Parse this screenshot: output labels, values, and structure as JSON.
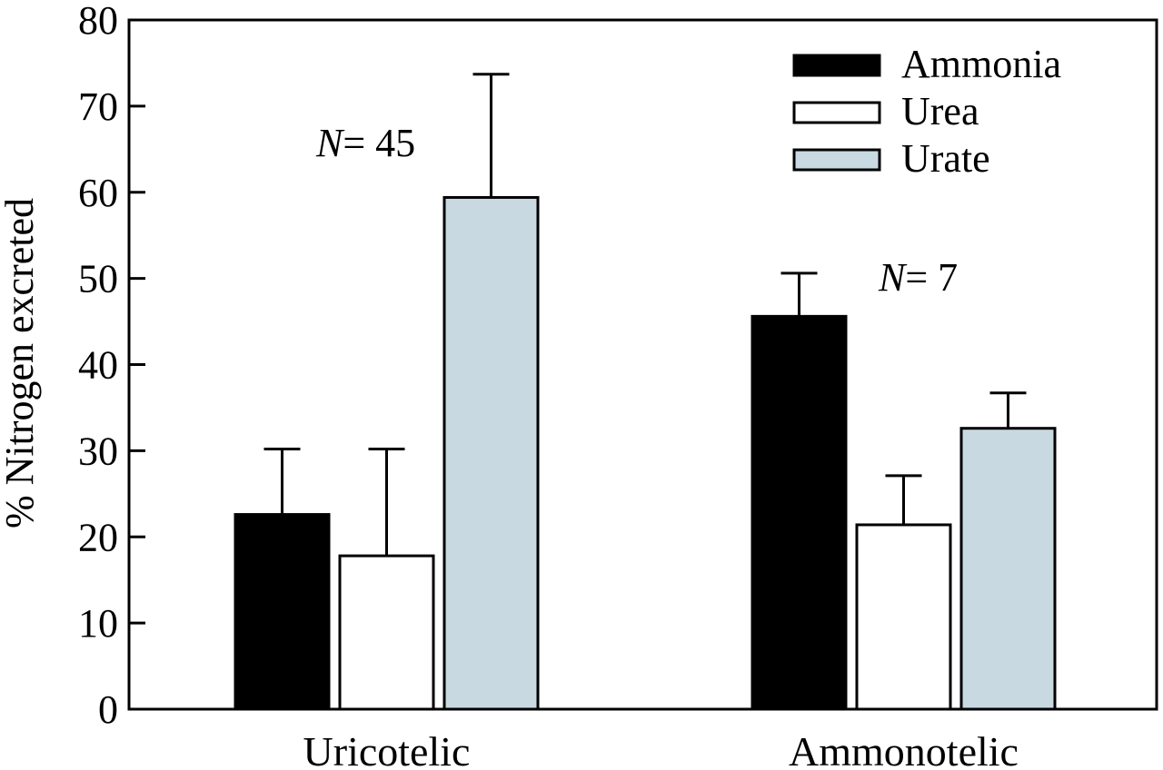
{
  "chart_data": {
    "type": "bar",
    "title": "",
    "xlabel": "",
    "ylabel": "% Nitrogen excreted",
    "ylim": [
      0,
      80
    ],
    "yticks": [
      0,
      10,
      20,
      30,
      40,
      50,
      60,
      70,
      80
    ],
    "categories": [
      "Uricotelic",
      "Ammonotelic"
    ],
    "series": [
      {
        "name": "Ammonia",
        "values": [
          22.6,
          45.6
        ],
        "errors": [
          7.6,
          5.0
        ],
        "color": "#000000"
      },
      {
        "name": "Urea",
        "values": [
          17.8,
          21.4
        ],
        "errors": [
          12.4,
          5.7
        ],
        "color": "#ffffff"
      },
      {
        "name": "Urate",
        "values": [
          59.4,
          32.6
        ],
        "errors": [
          14.3,
          4.1
        ],
        "color": "#c9d9e1"
      }
    ],
    "annotations": [
      {
        "label": "N",
        "text": "= 45"
      },
      {
        "label": "N",
        "text": "= 7"
      }
    ],
    "legend": "top-right",
    "grid": false
  }
}
